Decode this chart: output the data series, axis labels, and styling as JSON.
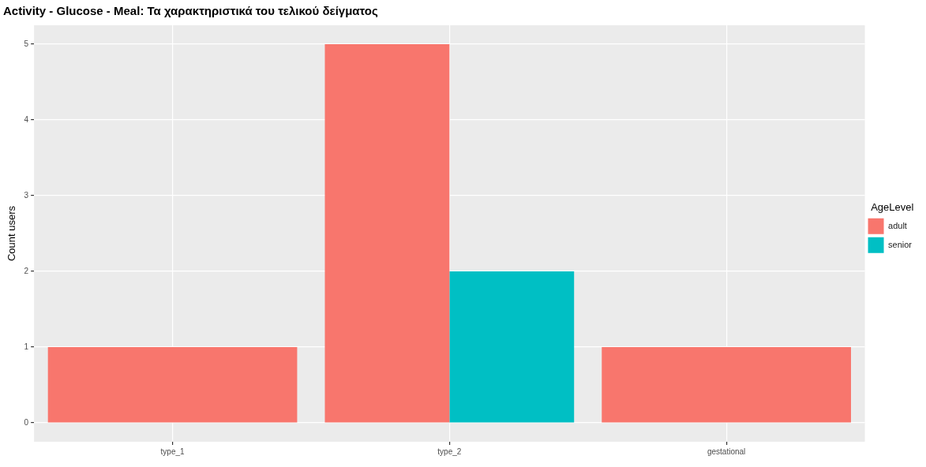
{
  "chart_data": {
    "type": "bar",
    "title": "Activity - Glucose - Meal: Τα χαρακτηριστικά του τελικού δείγματος",
    "ylabel": "Count users",
    "legend_title": "AgeLevel",
    "categories": [
      "type_1",
      "type_2",
      "gestational"
    ],
    "series": [
      {
        "name": "adult",
        "color": "#f8766d",
        "values": [
          1,
          5,
          1
        ]
      },
      {
        "name": "senior",
        "color": "#00bfc4",
        "values": [
          null,
          2,
          null
        ]
      }
    ],
    "ylim": [
      -0.25,
      5.25
    ],
    "yticks": [
      0,
      1,
      2,
      3,
      4,
      5
    ],
    "grid": true,
    "legend": "right"
  }
}
